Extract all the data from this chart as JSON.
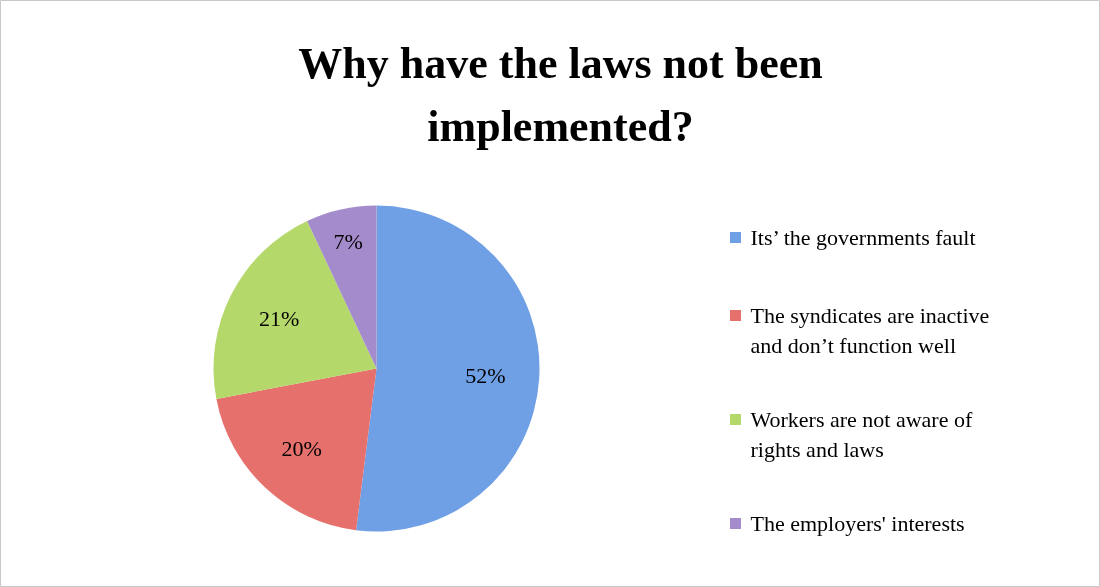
{
  "chart_data": {
    "type": "pie",
    "title": "Why have the laws not been implemented?",
    "categories": [
      "Its’ the governments fault",
      "The syndicates are inactive and don’t function well",
      "Workers are not aware of rights and laws",
      "The employers' interests"
    ],
    "values": [
      52,
      20,
      21,
      7
    ],
    "colors": [
      "#6f9fe4",
      "#e5706c",
      "#b4d86a",
      "#a48bcb"
    ],
    "value_labels": [
      "52%",
      "20%",
      "21%",
      "7%"
    ],
    "legend": "right"
  }
}
